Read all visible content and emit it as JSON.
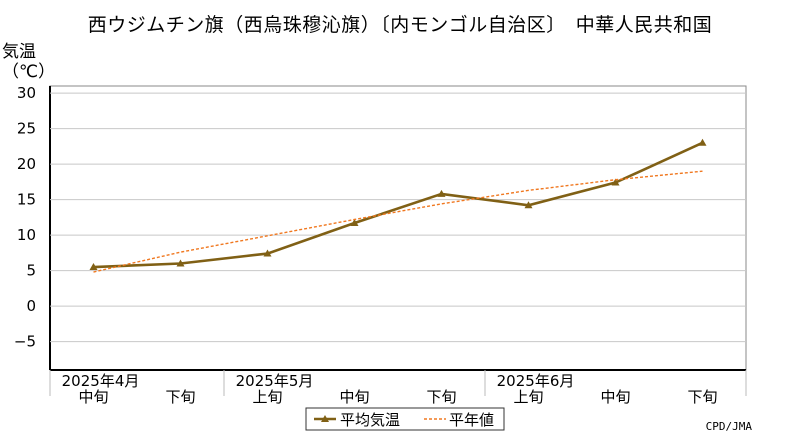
{
  "title": "西ウジムチン旗（西烏珠穆沁旗）〔内モンゴル自治区〕　中華人民共和国",
  "credit": "CPD/JMA",
  "chart_data": {
    "type": "line",
    "title": "西ウジムチン旗（西烏珠穆沁旗）〔内モンゴル自治区〕　中華人民共和国",
    "ylabel": [
      "気温",
      "（℃）"
    ],
    "ylim": [
      -9,
      31
    ],
    "yticks": [
      30,
      25,
      20,
      15,
      10,
      5,
      0,
      -5
    ],
    "grid": true,
    "legend_position": "bottom-center",
    "x_groups": [
      {
        "label": "2025年4月",
        "periods": [
          "中旬",
          "下旬"
        ]
      },
      {
        "label": "2025年5月",
        "periods": [
          "上旬",
          "中旬",
          "下旬"
        ]
      },
      {
        "label": "2025年6月",
        "periods": [
          "上旬",
          "中旬",
          "下旬"
        ]
      }
    ],
    "categories": [
      "中旬",
      "下旬",
      "上旬",
      "中旬",
      "下旬",
      "上旬",
      "中旬",
      "下旬"
    ],
    "series": [
      {
        "name": "平均気温",
        "style": "solid",
        "marker": "triangle",
        "color": "#806015",
        "values": [
          5.5,
          6.0,
          7.4,
          11.7,
          15.8,
          14.2,
          17.4,
          23.0
        ]
      },
      {
        "name": "平年値",
        "style": "dashed",
        "marker": "none",
        "color": "#f07820",
        "values": [
          4.8,
          7.6,
          9.9,
          12.2,
          14.4,
          16.3,
          17.8,
          19.0
        ]
      }
    ]
  }
}
